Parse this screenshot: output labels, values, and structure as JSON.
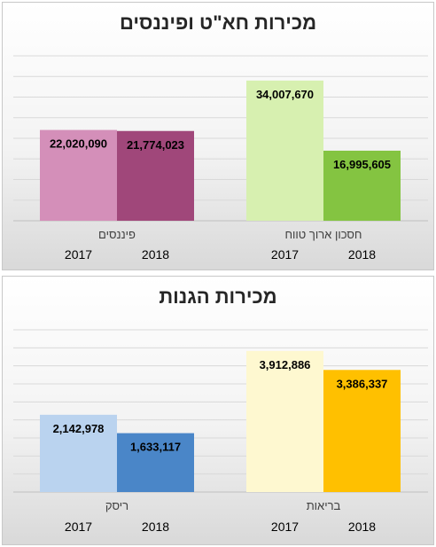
{
  "chart_data": [
    {
      "type": "bar",
      "title": "מכירות חא\"ט ופיננסים",
      "groups": [
        {
          "name": "חסכון ארוך טווח",
          "years": [
            "2017",
            "2018"
          ],
          "values": [
            34007670,
            16995605
          ],
          "labels": [
            "34,007,670",
            "16,995,605"
          ],
          "colors": [
            "#d7f0b0",
            "#84c441"
          ]
        },
        {
          "name": "פיננסים",
          "years": [
            "2017",
            "2018"
          ],
          "values": [
            22020090,
            21774023
          ],
          "labels": [
            "22,020,090",
            "21,774,023"
          ],
          "colors": [
            "#d48fb9",
            "#a0477a"
          ]
        }
      ],
      "ylim": [
        0,
        40000000
      ],
      "grid": true,
      "legend": "none"
    },
    {
      "type": "bar",
      "title": "מכירות הגנות",
      "groups": [
        {
          "name": "בריאות",
          "years": [
            "2017",
            "2018"
          ],
          "values": [
            3912886,
            3386337
          ],
          "labels": [
            "3,912,886",
            "3,386,337"
          ],
          "colors": [
            "#fef8d0",
            "#ffc000"
          ]
        },
        {
          "name": "ריסק",
          "years": [
            "2017",
            "2018"
          ],
          "values": [
            2142978,
            1633117
          ],
          "labels": [
            "2,142,978",
            "1,633,117"
          ],
          "colors": [
            "#bad3ef",
            "#4a86c8"
          ]
        }
      ],
      "ylim": [
        0,
        4500000
      ],
      "grid": true,
      "legend": "none"
    }
  ]
}
